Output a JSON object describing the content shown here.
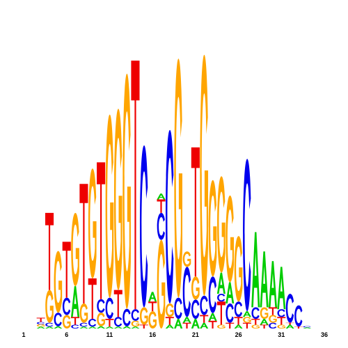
{
  "colors": {
    "A": "#00cc00",
    "C": "#0000ee",
    "G": "#ffa500",
    "T": "#ee0000"
  },
  "chart_data": {
    "type": "sequence-logo",
    "title": "",
    "xlabel": "",
    "ylabel": "",
    "x_tick_labels": [
      "1",
      "6",
      "11",
      "16",
      "21",
      "26",
      "31",
      "36"
    ],
    "x_tick_positions": [
      1,
      6,
      11,
      16,
      21,
      26,
      31,
      36
    ],
    "ylim": [
      0,
      2
    ],
    "positions": [
      {
        "pos": 1,
        "letters": []
      },
      {
        "pos": 2,
        "letters": []
      },
      {
        "pos": 3,
        "letters": [
          {
            "l": "A",
            "h": 0.01
          },
          {
            "l": "G",
            "h": 0.012
          },
          {
            "l": "C",
            "h": 0.012
          },
          {
            "l": "T",
            "h": 0.022
          }
        ]
      },
      {
        "pos": 4,
        "letters": [
          {
            "l": "A",
            "h": 0.01
          },
          {
            "l": "C",
            "h": 0.02
          },
          {
            "l": "G",
            "h": 0.17
          },
          {
            "l": "T",
            "h": 0.4
          }
        ]
      },
      {
        "pos": 5,
        "letters": [
          {
            "l": "A",
            "h": 0.012
          },
          {
            "l": "C",
            "h": 0.07
          },
          {
            "l": "G",
            "h": 0.32
          }
        ]
      },
      {
        "pos": 6,
        "letters": [
          {
            "l": "G",
            "h": 0.07
          },
          {
            "l": "C",
            "h": 0.09
          },
          {
            "l": "T",
            "h": 0.29
          }
        ]
      },
      {
        "pos": 7,
        "letters": [
          {
            "l": "C",
            "h": 0.02
          },
          {
            "l": "T",
            "h": 0.04
          },
          {
            "l": "A",
            "h": 0.16
          },
          {
            "l": "G",
            "h": 0.38
          }
        ]
      },
      {
        "pos": 8,
        "letters": [
          {
            "l": "A",
            "h": 0.01
          },
          {
            "l": "C",
            "h": 0.02
          },
          {
            "l": "G",
            "h": 0.1
          },
          {
            "l": "T",
            "h": 0.62
          }
        ]
      },
      {
        "pos": 9,
        "letters": [
          {
            "l": "A",
            "h": 0.01
          },
          {
            "l": "C",
            "h": 0.04
          },
          {
            "l": "T",
            "h": 0.21
          },
          {
            "l": "G",
            "h": 0.57
          }
        ]
      },
      {
        "pos": 10,
        "letters": [
          {
            "l": "A",
            "h": 0.012
          },
          {
            "l": "G",
            "h": 0.07
          },
          {
            "l": "C",
            "h": 0.07
          },
          {
            "l": "T",
            "h": 0.71
          }
        ]
      },
      {
        "pos": 11,
        "letters": [
          {
            "l": "A",
            "h": 0.01
          },
          {
            "l": "T",
            "h": 0.04
          },
          {
            "l": "C",
            "h": 0.11
          },
          {
            "l": "G",
            "h": 0.95
          }
        ]
      },
      {
        "pos": 12,
        "letters": [
          {
            "l": "A",
            "h": 0.01
          },
          {
            "l": "C",
            "h": 0.05
          },
          {
            "l": "T",
            "h": 0.14
          },
          {
            "l": "G",
            "h": 0.94
          }
        ]
      },
      {
        "pos": 13,
        "letters": [
          {
            "l": "A",
            "h": 0.012
          },
          {
            "l": "C",
            "h": 0.09
          },
          {
            "l": "G",
            "h": 1.22
          }
        ]
      },
      {
        "pos": 14,
        "letters": [
          {
            "l": "A",
            "h": 0.01
          },
          {
            "l": "G",
            "h": 0.03
          },
          {
            "l": "C",
            "h": 0.06
          },
          {
            "l": "T",
            "h": 1.29
          }
        ]
      },
      {
        "pos": 15,
        "letters": [
          {
            "l": "T",
            "h": 0.02
          },
          {
            "l": "G",
            "h": 0.09
          },
          {
            "l": "C",
            "h": 0.84
          }
        ]
      },
      {
        "pos": 16,
        "letters": [
          {
            "l": "G",
            "h": 0.09
          },
          {
            "l": "T",
            "h": 0.05
          },
          {
            "l": "A",
            "h": 0.05
          }
        ]
      },
      {
        "pos": 17,
        "letters": [
          {
            "l": "G",
            "h": 0.46
          },
          {
            "l": "C",
            "h": 0.14
          },
          {
            "l": "T",
            "h": 0.07
          },
          {
            "l": "A",
            "h": 0.03
          }
        ]
      },
      {
        "pos": 18,
        "letters": [
          {
            "l": "A",
            "h": 0.02
          },
          {
            "l": "T",
            "h": 0.04
          },
          {
            "l": "G",
            "h": 0.07
          },
          {
            "l": "C",
            "h": 0.9
          }
        ]
      },
      {
        "pos": 19,
        "letters": [
          {
            "l": "A",
            "h": 0.05
          },
          {
            "l": "C",
            "h": 0.11
          },
          {
            "l": "G",
            "h": 1.24
          }
        ]
      },
      {
        "pos": 20,
        "letters": [
          {
            "l": "T",
            "h": 0.03
          },
          {
            "l": "A",
            "h": 0.03
          },
          {
            "l": "C",
            "h": 0.26
          },
          {
            "l": "G",
            "h": 0.08
          }
        ]
      },
      {
        "pos": 21,
        "letters": [
          {
            "l": "A",
            "h": 0.05
          },
          {
            "l": "C",
            "h": 0.1
          },
          {
            "l": "G",
            "h": 0.12
          },
          {
            "l": "T",
            "h": 0.67
          }
        ]
      },
      {
        "pos": 22,
        "letters": [
          {
            "l": "A",
            "h": 0.03
          },
          {
            "l": "T",
            "h": 0.04
          },
          {
            "l": "C",
            "h": 0.1
          },
          {
            "l": "G",
            "h": 1.25
          }
        ]
      },
      {
        "pos": 23,
        "letters": [
          {
            "l": "T",
            "h": 0.04
          },
          {
            "l": "A",
            "h": 0.04
          },
          {
            "l": "C",
            "h": 0.19
          },
          {
            "l": "G",
            "h": 0.5
          }
        ]
      },
      {
        "pos": 24,
        "letters": [
          {
            "l": "G",
            "h": 0.02
          },
          {
            "l": "T",
            "h": 0.12
          },
          {
            "l": "C",
            "h": 0.04
          },
          {
            "l": "A",
            "h": 0.11
          },
          {
            "l": "G",
            "h": 0.5
          }
        ]
      },
      {
        "pos": 25,
        "letters": [
          {
            "l": "T",
            "h": 0.03
          },
          {
            "l": "C",
            "h": 0.1
          },
          {
            "l": "A",
            "h": 0.11
          },
          {
            "l": "G",
            "h": 0.45
          }
        ]
      },
      {
        "pos": 26,
        "letters": [
          {
            "l": "A",
            "h": 0.02
          },
          {
            "l": "T",
            "h": 0.04
          },
          {
            "l": "C",
            "h": 0.08
          },
          {
            "l": "G",
            "h": 0.34
          }
        ]
      },
      {
        "pos": 27,
        "letters": [
          {
            "l": "T",
            "h": 0.03
          },
          {
            "l": "G",
            "h": 0.03
          },
          {
            "l": "A",
            "h": 0.03
          },
          {
            "l": "C",
            "h": 0.79
          }
        ]
      },
      {
        "pos": 28,
        "letters": [
          {
            "l": "G",
            "h": 0.02
          },
          {
            "l": "T",
            "h": 0.03
          },
          {
            "l": "C",
            "h": 0.06
          },
          {
            "l": "A",
            "h": 0.39
          }
        ]
      },
      {
        "pos": 29,
        "letters": [
          {
            "l": "T",
            "h": 0.02
          },
          {
            "l": "A",
            "h": 0.03
          },
          {
            "l": "G",
            "h": 0.06
          },
          {
            "l": "A",
            "h": 0.29
          }
        ]
      },
      {
        "pos": 30,
        "letters": [
          {
            "l": "C",
            "h": 0.03
          },
          {
            "l": "G",
            "h": 0.04
          },
          {
            "l": "T",
            "h": 0.04
          },
          {
            "l": "A",
            "h": 0.24
          }
        ]
      },
      {
        "pos": 31,
        "letters": [
          {
            "l": "G",
            "h": 0.02
          },
          {
            "l": "T",
            "h": 0.04
          },
          {
            "l": "C",
            "h": 0.04
          },
          {
            "l": "A",
            "h": 0.22
          }
        ]
      },
      {
        "pos": 32,
        "letters": [
          {
            "l": "A",
            "h": 0.02
          },
          {
            "l": "T",
            "h": 0.01
          },
          {
            "l": "C",
            "h": 0.15
          }
        ]
      },
      {
        "pos": 33,
        "letters": [
          {
            "l": "T",
            "h": 0.01
          },
          {
            "l": "C",
            "h": 0.11
          }
        ]
      },
      {
        "pos": 34,
        "letters": [
          {
            "l": "A",
            "h": 0.006
          },
          {
            "l": "C",
            "h": 0.006
          }
        ]
      },
      {
        "pos": 35,
        "letters": []
      },
      {
        "pos": 36,
        "letters": []
      }
    ]
  }
}
